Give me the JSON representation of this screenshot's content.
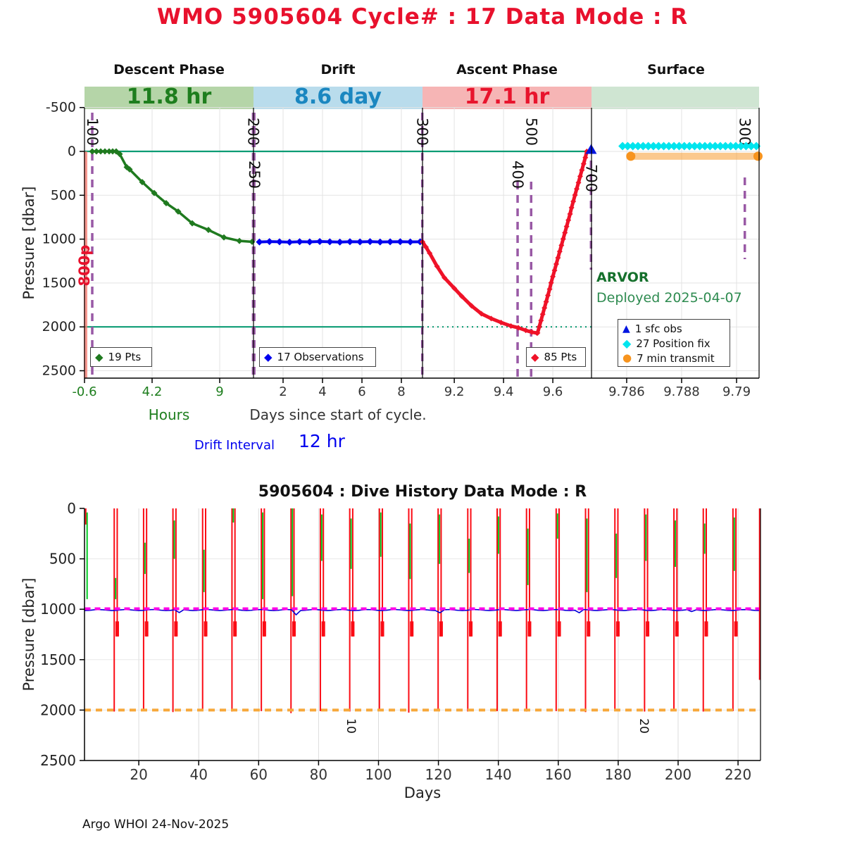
{
  "title": "WMO 5905604   Cycle# : 17   Data Mode : R",
  "footer": "Argo WHOI 24-Nov-2025",
  "colors": {
    "title_red": "#e8112d",
    "descent_green": "#1f7a1f",
    "drift_blue": "#0000ee",
    "ascent_red": "#ef1228",
    "teal_ref": "#0c9c74",
    "event_purple": "#9350a0",
    "salmon_line": "#f4756b",
    "cyan_fix": "#00e5ee",
    "orange_transmit": "#f7941e",
    "sfc_obs_blue": "#0014e0",
    "bottom_red": "#fb0b14",
    "bottom_green": "#00cc22",
    "bottom_blue": "#0000d8",
    "magenta_park": "#ff00e8",
    "orange_profile": "#f7a83a",
    "grid_gray": "#e3e3e3"
  },
  "chart_data": [
    {
      "type": "line",
      "name": "cycle-timeline",
      "ylabel": "Pressure [dbar]",
      "yticks": [
        -500,
        0,
        500,
        1000,
        1500,
        2000,
        2500
      ],
      "ytick_labels": [
        "-500",
        "0",
        "500",
        "1000",
        "1500",
        "2000",
        "2500"
      ],
      "ylim": [
        -500,
        2500
      ],
      "grid": true,
      "xlabel_hours": "Hours",
      "xlabel_days": "Days since start of cycle.",
      "drift_interval": {
        "label": "Drift Interval",
        "value": "12 hr"
      },
      "float_model": "ARVOR",
      "deployed": "Deployed 2025-04-07",
      "park_label": "800p",
      "phases": [
        {
          "name": "Descent Phase",
          "duration": "11.8 hr",
          "band_color": "#b5d5a8"
        },
        {
          "name": "Drift",
          "duration": "8.6 day",
          "band_color": "#b9dcec"
        },
        {
          "name": "Ascent Phase",
          "duration": "17.1 hr",
          "band_color": "#f6b5b5"
        },
        {
          "name": "Surface",
          "duration": "",
          "band_color": "#cfe5d2"
        }
      ],
      "panels": [
        {
          "unit": "hours",
          "d0": -0.6,
          "d1": 11.4,
          "ticks": [
            -0.6,
            4.2,
            9
          ],
          "tick_labels": [
            "-0.6",
            "4.2",
            "9"
          ],
          "tick_color": "#1e7e1e"
        },
        {
          "unit": "days",
          "d0": 0.5,
          "d1": 9.071,
          "ticks": [
            2,
            4,
            6,
            8
          ],
          "tick_labels": [
            "2",
            "4",
            "6",
            "8"
          ],
          "tick_color": "#333333"
        },
        {
          "unit": "days",
          "d0": 9.071,
          "d1": 9.757,
          "ticks": [
            9.2,
            9.4,
            9.6
          ],
          "tick_labels": [
            "9.2",
            "9.4",
            "9.6"
          ],
          "tick_color": "#333333"
        },
        {
          "unit": "days",
          "d0": 9.78472,
          "d1": 9.79082,
          "ticks": [
            9.786,
            9.788,
            9.79
          ],
          "tick_labels": [
            "9.786",
            "9.788",
            "9.79"
          ],
          "tick_color": "#333333"
        }
      ],
      "ref_lines": {
        "surface": 0,
        "park": 2000
      },
      "event_lines": [
        {
          "text": "100",
          "panel": 0,
          "d": -0.05,
          "y1": 160,
          "y2": 537,
          "ly": 187
        },
        {
          "text": "200",
          "panel": 0,
          "d": 11.37,
          "y1": 160,
          "y2": 537,
          "ly": 187
        },
        {
          "text": "250",
          "panel": 1,
          "d": 0.54,
          "y1": 160,
          "y2": 537,
          "ly": 248
        },
        {
          "text": "300",
          "panel": 1,
          "d": 9.06,
          "y1": 160,
          "y2": 537,
          "ly": 187
        },
        {
          "text": "400",
          "panel": 2,
          "d": 9.457,
          "y1": 258,
          "y2": 537,
          "ly": 248
        },
        {
          "text": "500",
          "panel": 2,
          "d": 9.512,
          "y1": 258,
          "y2": 537,
          "ly": 187
        },
        {
          "text": "700",
          "panel": 2,
          "d": 9.755,
          "y1": 228,
          "y2": 383,
          "ly": 253
        },
        {
          "text": "300",
          "panel": 3,
          "d": 9.7903,
          "y1": 252,
          "y2": 368,
          "ly": 187
        }
      ],
      "series": {
        "descent": {
          "label": "19 Pts",
          "points": [
            [
              -0.05,
              0
            ],
            [
              0.25,
              0
            ],
            [
              0.55,
              0
            ],
            [
              0.85,
              0
            ],
            [
              1.15,
              0
            ],
            [
              1.4,
              0
            ],
            [
              1.65,
              0
            ],
            [
              1.9,
              30
            ],
            [
              2.4,
              180
            ],
            [
              2.6,
              205
            ],
            [
              3.5,
              350
            ],
            [
              4.35,
              475
            ],
            [
              5.2,
              590
            ],
            [
              6.05,
              685
            ],
            [
              7.05,
              820
            ],
            [
              8.2,
              895
            ],
            [
              9.3,
              980
            ],
            [
              10.4,
              1020
            ],
            [
              11.3,
              1030
            ]
          ]
        },
        "drift": {
          "label": "17 Observations",
          "points": [
            [
              0.8,
              1032
            ],
            [
              1.31,
              1028
            ],
            [
              1.82,
              1030
            ],
            [
              2.33,
              1034
            ],
            [
              2.84,
              1029
            ],
            [
              3.35,
              1031
            ],
            [
              3.86,
              1027
            ],
            [
              4.37,
              1030
            ],
            [
              4.88,
              1033
            ],
            [
              5.39,
              1029
            ],
            [
              5.9,
              1031
            ],
            [
              6.41,
              1028
            ],
            [
              6.92,
              1032
            ],
            [
              7.43,
              1030
            ],
            [
              7.94,
              1029
            ],
            [
              8.45,
              1031
            ],
            [
              8.95,
              1030
            ]
          ]
        },
        "ascent": {
          "label": "85 Pts",
          "points": [
            [
              9.071,
              1030
            ],
            [
              9.085,
              1090
            ],
            [
              9.1,
              1160
            ],
            [
              9.13,
              1310
            ],
            [
              9.16,
              1440
            ],
            [
              9.2,
              1560
            ],
            [
              9.23,
              1650
            ],
            [
              9.27,
              1760
            ],
            [
              9.31,
              1850
            ],
            [
              9.35,
              1905
            ],
            [
              9.39,
              1950
            ],
            [
              9.43,
              1990
            ],
            [
              9.46,
              2010
            ],
            [
              9.49,
              2040
            ],
            [
              9.515,
              2060
            ],
            [
              9.535,
              2070
            ],
            [
              9.538,
              2070
            ],
            [
              9.545,
              1999
            ],
            [
              9.552,
              1927
            ],
            [
              9.559,
              1856
            ],
            [
              9.566,
              1784
            ],
            [
              9.573,
              1713
            ],
            [
              9.58,
              1641
            ],
            [
              9.587,
              1570
            ],
            [
              9.593,
              1498
            ],
            [
              9.6,
              1427
            ],
            [
              9.607,
              1356
            ],
            [
              9.614,
              1284
            ],
            [
              9.621,
              1213
            ],
            [
              9.628,
              1141
            ],
            [
              9.635,
              1070
            ],
            [
              9.642,
              998
            ],
            [
              9.649,
              927
            ],
            [
              9.656,
              856
            ],
            [
              9.663,
              784
            ],
            [
              9.67,
              713
            ],
            [
              9.676,
              641
            ],
            [
              9.683,
              570
            ],
            [
              9.69,
              498
            ],
            [
              9.697,
              427
            ],
            [
              9.704,
              356
            ],
            [
              9.711,
              284
            ],
            [
              9.718,
              213
            ],
            [
              9.725,
              141
            ],
            [
              9.732,
              70
            ],
            [
              9.738,
              0
            ]
          ]
        },
        "sfc_obs": {
          "label": "1 sfc obs",
          "day": 9.7555,
          "pressure": -20
        },
        "position_fix": {
          "label": "27 Position fix",
          "count": 27,
          "day_start": 9.78585,
          "day_end": 9.79072,
          "pressure": -60
        },
        "transmit": {
          "label": "7 min transmit",
          "day_start": 9.78615,
          "day_end": 9.79078,
          "pressure": 55
        }
      }
    },
    {
      "type": "line",
      "name": "dive-history",
      "title": "5905604 : Dive History     Data Mode : R",
      "ylabel": "Pressure [dbar]",
      "xlabel": "Days",
      "yticks": [
        0,
        500,
        1000,
        1500,
        2000,
        2500
      ],
      "ytick_labels": [
        "0",
        "500",
        "1000",
        "1500",
        "2000",
        "2500"
      ],
      "xticks": [
        20,
        40,
        60,
        80,
        100,
        120,
        140,
        160,
        180,
        200,
        220
      ],
      "xtick_labels": [
        "20",
        "40",
        "60",
        "80",
        "100",
        "120",
        "140",
        "160",
        "180",
        "200",
        "220"
      ],
      "xlim": [
        1.9,
        227.5
      ],
      "ylim": [
        0,
        2500
      ],
      "park_pressure": 995,
      "profile_pressure": 2000,
      "drift_track": {
        "pressure": 1008,
        "blips": [
          [
            33,
            30
          ],
          [
            72,
            45
          ],
          [
            120,
            25
          ],
          [
            167,
            30
          ],
          [
            205,
            20
          ]
        ]
      },
      "cycle_labels": [
        {
          "text": "10",
          "day": 90
        },
        {
          "text": "20",
          "day": 188.5
        }
      ],
      "cycles": [
        [
          2.3,
          160,
          40,
          900
        ],
        [
          11.8,
          2015,
          690,
          900
        ],
        [
          21.6,
          2010,
          340,
          650
        ],
        [
          31.4,
          2020,
          120,
          500
        ],
        [
          41.3,
          2010,
          410,
          830
        ],
        [
          51.1,
          2015,
          0,
          140
        ],
        [
          60.9,
          2010,
          40,
          900
        ],
        [
          70.8,
          2030,
          0,
          870
        ],
        [
          80.6,
          2010,
          60,
          520
        ],
        [
          90.4,
          2015,
          100,
          600
        ],
        [
          100.3,
          2010,
          40,
          480
        ],
        [
          110.1,
          2025,
          150,
          700
        ],
        [
          119.9,
          2010,
          60,
          550
        ],
        [
          129.8,
          2015,
          300,
          640
        ],
        [
          139.6,
          2010,
          80,
          450
        ],
        [
          149.4,
          2015,
          200,
          760
        ],
        [
          159.3,
          2010,
          50,
          300
        ],
        [
          169.1,
          2020,
          100,
          830
        ],
        [
          178.9,
          2010,
          250,
          690
        ],
        [
          188.8,
          2015,
          60,
          520
        ],
        [
          198.6,
          2010,
          120,
          580
        ],
        [
          208.4,
          2015,
          150,
          450
        ],
        [
          218.3,
          2010,
          90,
          620
        ],
        [
          227.2,
          1700,
          60,
          430
        ]
      ]
    }
  ]
}
